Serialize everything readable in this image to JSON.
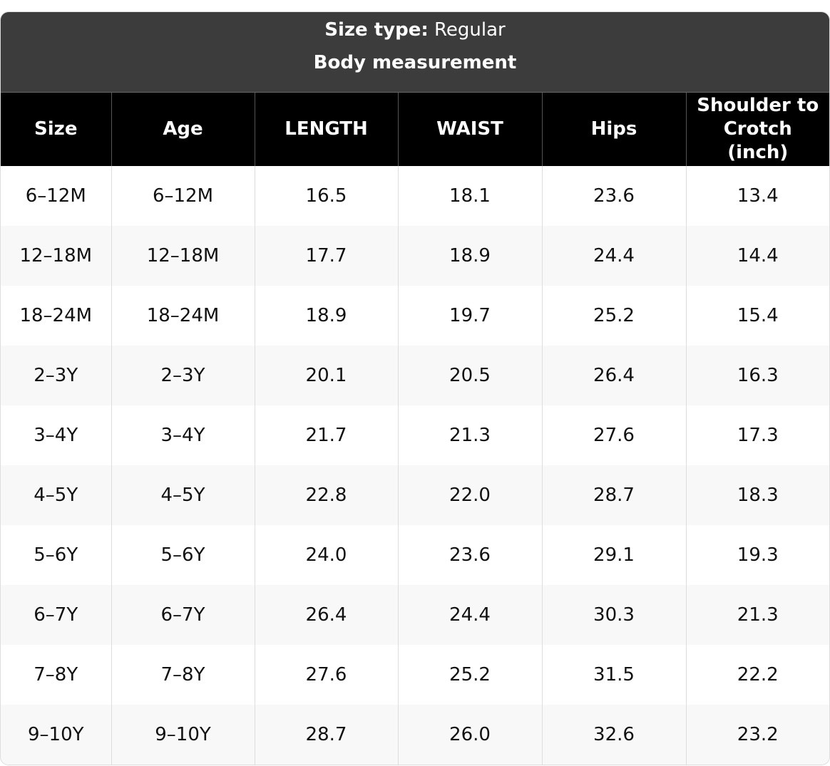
{
  "header": {
    "size_type_label": "Size type:",
    "size_type_value": "Regular",
    "title": "Body measurement"
  },
  "table": {
    "columns": [
      "Size",
      "Age",
      "LENGTH",
      "WAIST",
      "Hips",
      "Shoulder to Crotch (inch)"
    ],
    "rows": [
      [
        "6–12M",
        "6–12M",
        "16.5",
        "18.1",
        "23.6",
        "13.4"
      ],
      [
        "12–18M",
        "12–18M",
        "17.7",
        "18.9",
        "24.4",
        "14.4"
      ],
      [
        "18–24M",
        "18–24M",
        "18.9",
        "19.7",
        "25.2",
        "15.4"
      ],
      [
        "2–3Y",
        "2–3Y",
        "20.1",
        "20.5",
        "26.4",
        "16.3"
      ],
      [
        "3–4Y",
        "3–4Y",
        "21.7",
        "21.3",
        "27.6",
        "17.3"
      ],
      [
        "4–5Y",
        "4–5Y",
        "22.8",
        "22.0",
        "28.7",
        "18.3"
      ],
      [
        "5–6Y",
        "5–6Y",
        "24.0",
        "23.6",
        "29.1",
        "19.3"
      ],
      [
        "6–7Y",
        "6–7Y",
        "26.4",
        "24.4",
        "30.3",
        "21.3"
      ],
      [
        "7–8Y",
        "7–8Y",
        "27.6",
        "25.2",
        "31.5",
        "22.2"
      ],
      [
        "9–10Y",
        "9–10Y",
        "28.7",
        "26.0",
        "32.6",
        "23.2"
      ]
    ]
  }
}
